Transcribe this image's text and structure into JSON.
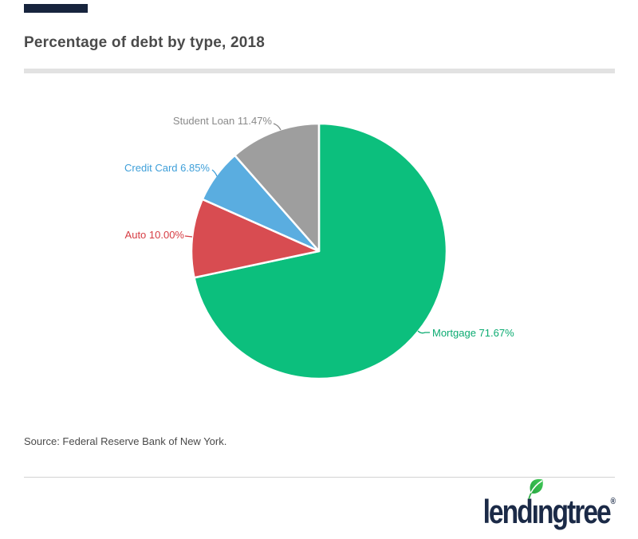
{
  "page": {
    "source": "Source: Federal Reserve Bank of New York."
  },
  "chart_data": {
    "type": "pie",
    "title": "Percentage of debt by type, 2018",
    "unit": "%",
    "start_angle_deg": -90,
    "direction": "clockwise",
    "legend": "none",
    "label_style": "callout",
    "slices": [
      {
        "label": "Mortgage",
        "value": 71.67,
        "display": "Mortgage 71.67%",
        "color": "#0cbf7d",
        "label_color": "#0bab71"
      },
      {
        "label": "Auto",
        "value": 10.0,
        "display": "Auto 10.00%",
        "color": "#d84c51",
        "label_color": "#d63c43"
      },
      {
        "label": "Credit Card",
        "value": 6.85,
        "display": "Credit Card 6.85%",
        "color": "#5aade0",
        "label_color": "#3e9fd9"
      },
      {
        "label": "Student Loan",
        "value": 11.47,
        "display": "Student Loan 11.47%",
        "color": "#9e9e9e",
        "label_color": "#8a8a8a"
      }
    ]
  },
  "footer": {
    "logo_pre": "lend",
    "logo_i": "ı",
    "logo_post": "ngtree",
    "registered": "®",
    "brand_navy": "#1b2a47",
    "leaf_green": "#35b94c"
  }
}
